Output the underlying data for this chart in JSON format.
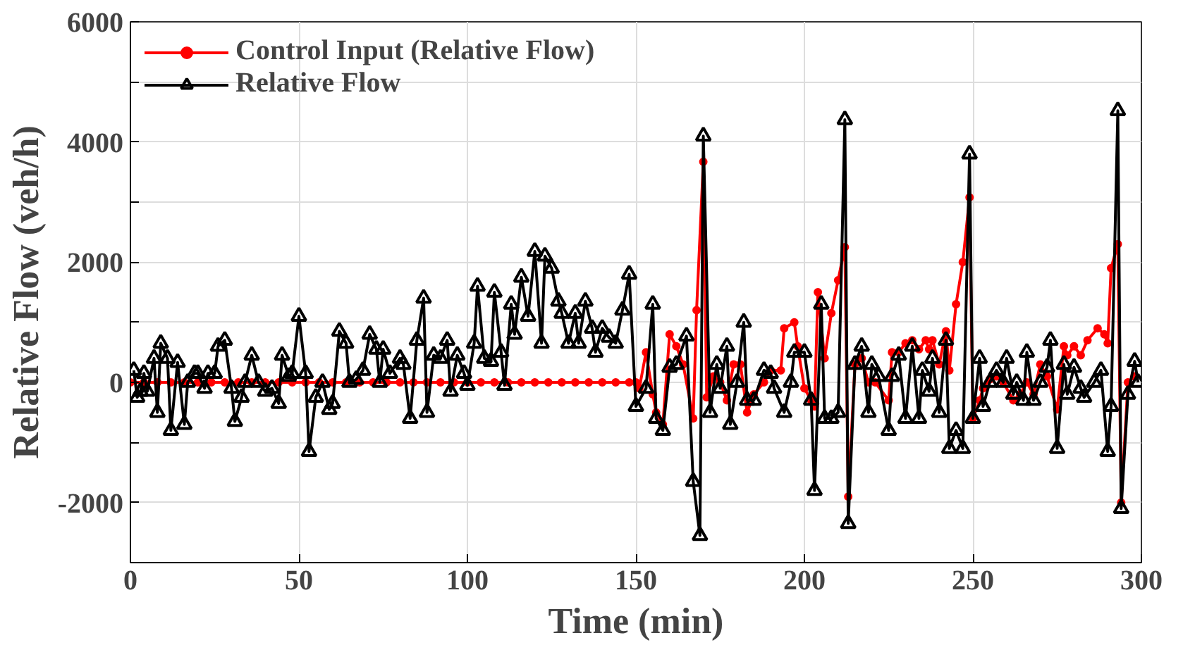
{
  "chart_data": {
    "type": "line",
    "xlabel": "Time (min)",
    "ylabel": "Relative Flow (veh/h)",
    "xlim": [
      0,
      300
    ],
    "ylim": [
      -3000,
      6000
    ],
    "xticks": [
      0,
      50,
      100,
      150,
      200,
      250,
      300
    ],
    "yticks": [
      {
        "value": -3000,
        "label": null
      },
      -2000,
      {
        "value": -1000,
        "label": null
      },
      0,
      {
        "value": 1000,
        "label": null
      },
      2000,
      {
        "value": 3000,
        "label": null
      },
      4000,
      {
        "value": 5000,
        "label": null
      },
      6000
    ],
    "grid": true,
    "legend": "top left",
    "line_style": "solid",
    "series": [
      {
        "name": "Control Input (Relative Flow)",
        "color": "#ff0000",
        "marker": "circle",
        "x": [
          0,
          4,
          8,
          12,
          16,
          20,
          24,
          28,
          32,
          36,
          40,
          44,
          48,
          52,
          56,
          60,
          64,
          68,
          72,
          76,
          80,
          84,
          88,
          92,
          96,
          100,
          104,
          108,
          112,
          116,
          120,
          124,
          128,
          132,
          136,
          140,
          144,
          148,
          150,
          151,
          153,
          155,
          156,
          158,
          160,
          162,
          164,
          167,
          168,
          170,
          171,
          173,
          175,
          177,
          179,
          181,
          183,
          185,
          188,
          190,
          193,
          194,
          197,
          198,
          200,
          202,
          203,
          204,
          206,
          208,
          210,
          212,
          213,
          215,
          217,
          219,
          221,
          225,
          226,
          228,
          230,
          232,
          234,
          236,
          237,
          238,
          240,
          242,
          243,
          245,
          247,
          249,
          250,
          252,
          253,
          255,
          257,
          259,
          262,
          264,
          266,
          268,
          270,
          272,
          275,
          277,
          278,
          280,
          282,
          284,
          287,
          289,
          290,
          291,
          293,
          294,
          296,
          298
        ],
        "values": [
          0,
          0,
          0,
          0,
          0,
          0,
          0,
          0,
          0,
          0,
          0,
          0,
          0,
          0,
          0,
          0,
          0,
          0,
          0,
          0,
          0,
          0,
          0,
          0,
          0,
          0,
          0,
          0,
          0,
          0,
          0,
          0,
          0,
          0,
          0,
          0,
          0,
          0,
          0,
          -100,
          500,
          -200,
          -500,
          -700,
          800,
          600,
          300,
          -600,
          1200,
          3670,
          -250,
          100,
          0,
          -300,
          300,
          300,
          -500,
          -200,
          0,
          200,
          200,
          900,
          1000,
          600,
          -100,
          -300,
          -400,
          1500,
          400,
          1150,
          1700,
          2250,
          -1900,
          300,
          400,
          0,
          0,
          -300,
          500,
          500,
          650,
          700,
          550,
          700,
          550,
          700,
          300,
          850,
          200,
          1300,
          2000,
          3080,
          -600,
          -300,
          -100,
          50,
          100,
          0,
          -300,
          -200,
          0,
          -200,
          300,
          100,
          -450,
          600,
          450,
          600,
          450,
          700,
          900,
          800,
          650,
          1900,
          2300,
          -2000,
          0,
          100
        ]
      },
      {
        "name": "Relative Flow",
        "color": "#000000",
        "marker": "triangle",
        "x": [
          1,
          2,
          3,
          4,
          5,
          7,
          8,
          9,
          11,
          12,
          14,
          16,
          17,
          19,
          20,
          22,
          23,
          25,
          26,
          28,
          30,
          31,
          33,
          34,
          36,
          38,
          40,
          42,
          44,
          45,
          47,
          48,
          50,
          52,
          53,
          55,
          57,
          59,
          60,
          62,
          64,
          65,
          67,
          69,
          71,
          73,
          74,
          75,
          77,
          80,
          81,
          83,
          85,
          87,
          88,
          90,
          92,
          94,
          95,
          97,
          99,
          100,
          102,
          103,
          105,
          107,
          108,
          110,
          111,
          113,
          114,
          116,
          118,
          120,
          122,
          123,
          125,
          127,
          128,
          130,
          132,
          133,
          135,
          137,
          138,
          140,
          142,
          144,
          146,
          148,
          150,
          153,
          155,
          156,
          158,
          160,
          162,
          165,
          167,
          169,
          170,
          172,
          174,
          175,
          177,
          178,
          180,
          182,
          183,
          185,
          188,
          190,
          191,
          194,
          196,
          197,
          200,
          202,
          203,
          205,
          206,
          208,
          210,
          212,
          213,
          215,
          217,
          219,
          220,
          222,
          225,
          226,
          228,
          230,
          232,
          234,
          235,
          237,
          238,
          240,
          242,
          243,
          245,
          247,
          249,
          250,
          252,
          253,
          255,
          257,
          259,
          260,
          262,
          263,
          265,
          266,
          268,
          270,
          272,
          273,
          275,
          277,
          278,
          280,
          282,
          283,
          286,
          288,
          290,
          291,
          293,
          294,
          296,
          298,
          299
        ],
        "values": [
          200,
          -250,
          -150,
          150,
          -150,
          400,
          -500,
          650,
          400,
          -800,
          330,
          -700,
          0,
          150,
          150,
          -100,
          150,
          150,
          600,
          700,
          -100,
          -650,
          -250,
          0,
          450,
          0,
          -150,
          -100,
          -350,
          450,
          100,
          150,
          1100,
          150,
          -1150,
          -250,
          0,
          -450,
          -350,
          850,
          650,
          0,
          50,
          200,
          800,
          550,
          0,
          550,
          150,
          400,
          300,
          -600,
          700,
          1400,
          -500,
          450,
          400,
          700,
          -150,
          450,
          150,
          -50,
          650,
          1600,
          400,
          350,
          1500,
          500,
          -50,
          1300,
          800,
          1750,
          1100,
          2180,
          650,
          2100,
          1900,
          1350,
          1150,
          650,
          1150,
          650,
          1350,
          900,
          500,
          900,
          750,
          650,
          1200,
          1800,
          -400,
          -100,
          1300,
          -600,
          -800,
          250,
          300,
          770,
          -1650,
          -2550,
          4100,
          -500,
          300,
          -100,
          600,
          -700,
          0,
          1000,
          -300,
          -300,
          200,
          150,
          -100,
          -500,
          0,
          500,
          500,
          -300,
          -1800,
          1300,
          -600,
          -600,
          -500,
          4370,
          -2350,
          300,
          600,
          -500,
          300,
          100,
          -800,
          100,
          450,
          -600,
          600,
          -600,
          200,
          -150,
          400,
          -500,
          700,
          -1100,
          -800,
          -1100,
          3800,
          -600,
          400,
          -400,
          0,
          200,
          0,
          400,
          -200,
          0,
          -300,
          500,
          -300,
          0,
          250,
          700,
          -1100,
          300,
          -200,
          250,
          -100,
          -250,
          0,
          200,
          -1150,
          -400,
          4520,
          -2100,
          -200,
          350,
          0
        ]
      }
    ]
  }
}
